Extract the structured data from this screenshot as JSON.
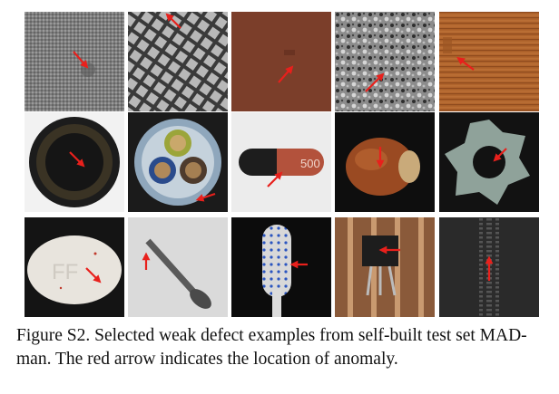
{
  "figure": {
    "caption_label": "Figure S2.",
    "caption_text": " Selected weak defect examples from self-built test set MAD-man. The red arrow indicates the location of anomaly.",
    "arrow_color": "#e8201c",
    "tiles": [
      {
        "subject": "carpet"
      },
      {
        "subject": "grid"
      },
      {
        "subject": "leather"
      },
      {
        "subject": "tile"
      },
      {
        "subject": "wood"
      },
      {
        "subject": "bottle"
      },
      {
        "subject": "cable"
      },
      {
        "subject": "capsule",
        "print": "500"
      },
      {
        "subject": "hazelnut"
      },
      {
        "subject": "metal nut"
      },
      {
        "subject": "pill",
        "print": "FF"
      },
      {
        "subject": "screw"
      },
      {
        "subject": "toothbrush"
      },
      {
        "subject": "transistor"
      },
      {
        "subject": "zipper"
      }
    ]
  }
}
